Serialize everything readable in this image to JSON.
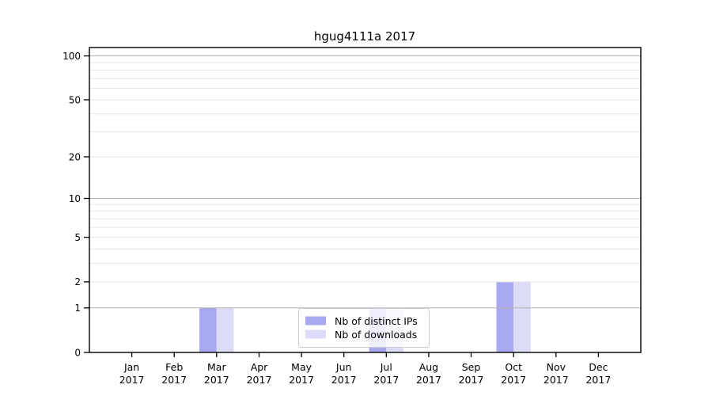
{
  "chart_data": {
    "type": "bar",
    "title": "hgug4111a 2017",
    "categories": [
      "Jan",
      "Feb",
      "Mar",
      "Apr",
      "May",
      "Jun",
      "Jul",
      "Aug",
      "Sep",
      "Oct",
      "Nov",
      "Dec"
    ],
    "x_year_label": "2017",
    "series": [
      {
        "name": "Nb of distinct IPs",
        "color": "#a8a8ef",
        "values": [
          0,
          0,
          1,
          0,
          0,
          0,
          1,
          0,
          0,
          2,
          0,
          0
        ]
      },
      {
        "name": "Nb of downloads",
        "color": "#dcdcf8",
        "values": [
          0,
          0,
          1,
          0,
          0,
          0,
          1,
          0,
          0,
          2,
          0,
          0
        ]
      }
    ],
    "y_scale": "log1p",
    "ylim": [
      0,
      100
    ],
    "y_ticks": [
      0,
      1,
      2,
      5,
      10,
      20,
      50,
      100
    ],
    "y_gridlines_strong": [
      1,
      10,
      100
    ],
    "y_gridlines_light": [
      2,
      3,
      4,
      5,
      6,
      7,
      8,
      9,
      20,
      30,
      40,
      50,
      60,
      70,
      80,
      90
    ],
    "grid": true,
    "legend_position": "inside-bottom-center",
    "colors": {
      "bar_distinct_ips": "#a8a8ef",
      "bar_downloads": "#dcdcf8",
      "major_grid": "#b2b2b2",
      "minor_grid": "#e7e7e7",
      "axis": "#000000",
      "text": "#000000",
      "legend_border": "#cccccc",
      "legend_bg": "#ffffff"
    }
  }
}
